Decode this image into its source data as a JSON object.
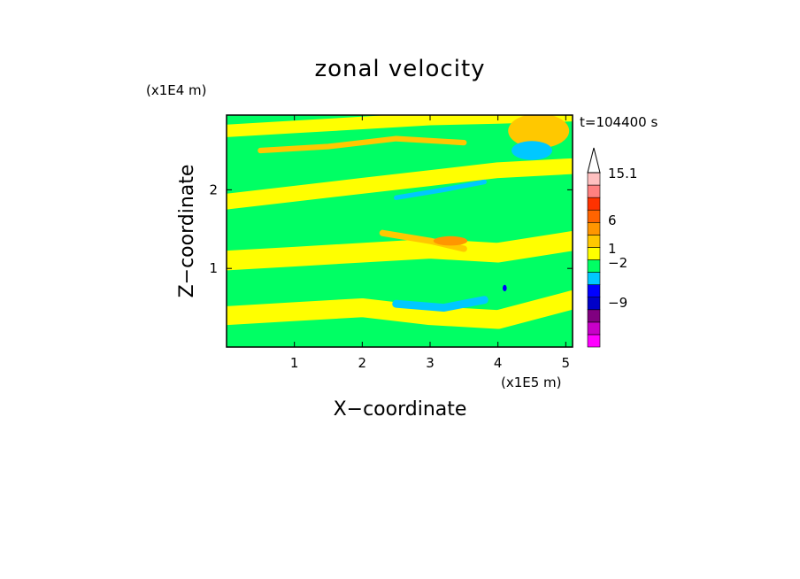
{
  "chart_data": {
    "type": "heatmap",
    "title": "zonal velocity",
    "xlabel": "X−coordinate",
    "ylabel": "Z−coordinate",
    "x_unit": "(x1E5 m)",
    "y_unit": "(x1E4 m)",
    "time_label": "t=104400 s",
    "xlim": [
      0.0,
      5.1
    ],
    "ylim": [
      0.0,
      2.95
    ],
    "x_ticks": [
      1,
      2,
      3,
      4,
      5
    ],
    "y_ticks": [
      1,
      2
    ],
    "x_tick_labels": [
      "1",
      "2",
      "3",
      "4",
      "5"
    ],
    "y_tick_labels": [
      "1",
      "2"
    ],
    "colorbar": {
      "extend": "max",
      "levels": [
        {
          "color": "#ff00ff"
        },
        {
          "color": "#c800c8"
        },
        {
          "color": "#800080"
        },
        {
          "color": "#0000c8"
        },
        {
          "color": "#0000ff"
        },
        {
          "color": "#00c8ff"
        },
        {
          "color": "#00ff64"
        },
        {
          "color": "#ffff00"
        },
        {
          "color": "#ffc800"
        },
        {
          "color": "#ff9600"
        },
        {
          "color": "#ff6400"
        },
        {
          "color": "#ff3200"
        },
        {
          "color": "#ff8080"
        },
        {
          "color": "#ffc0c0"
        }
      ],
      "tick_labels": [
        "15.1",
        "6",
        "1",
        "−2",
        "−9"
      ]
    },
    "bands": [
      {
        "color": "#00ff64",
        "points": [
          [
            0,
            0.1
          ],
          [
            0.5,
            0.15
          ],
          [
            1.5,
            0.05
          ],
          [
            3,
            0.12
          ],
          [
            4,
            0.08
          ],
          [
            5.1,
            0.2
          ]
        ],
        "thick": 0.14
      },
      {
        "color": "#ffff00",
        "points": [
          [
            0,
            0.4
          ],
          [
            1,
            0.45
          ],
          [
            2,
            0.5
          ],
          [
            3,
            0.4
          ],
          [
            4,
            0.35
          ],
          [
            5.1,
            0.6
          ]
        ],
        "thick": 0.24
      },
      {
        "color": "#00ff64",
        "points": [
          [
            0,
            0.75
          ],
          [
            1,
            0.8
          ],
          [
            2,
            0.85
          ],
          [
            3,
            0.7
          ],
          [
            4,
            0.75
          ],
          [
            5.1,
            1.0
          ]
        ],
        "thick": 0.22
      },
      {
        "color": "#00c8ff",
        "points": [
          [
            2.5,
            0.55
          ],
          [
            3.2,
            0.5
          ],
          [
            3.8,
            0.6
          ]
        ],
        "thick": 0.1
      },
      {
        "color": "#ffff00",
        "points": [
          [
            0,
            1.1
          ],
          [
            1,
            1.15
          ],
          [
            2,
            1.2
          ],
          [
            3,
            1.25
          ],
          [
            4,
            1.2
          ],
          [
            5.1,
            1.35
          ]
        ],
        "thick": 0.25
      },
      {
        "color": "#00ff64",
        "points": [
          [
            0,
            1.45
          ],
          [
            1,
            1.55
          ],
          [
            2,
            1.65
          ],
          [
            3,
            1.75
          ],
          [
            4,
            1.7
          ],
          [
            5.1,
            1.85
          ]
        ],
        "thick": 0.2
      },
      {
        "color": "#ffc800",
        "points": [
          [
            2.3,
            1.45
          ],
          [
            3,
            1.35
          ],
          [
            3.5,
            1.25
          ]
        ],
        "thick": 0.08
      },
      {
        "color": "#ffff00",
        "points": [
          [
            0,
            1.85
          ],
          [
            1,
            1.95
          ],
          [
            2,
            2.05
          ],
          [
            3,
            2.15
          ],
          [
            4,
            2.25
          ],
          [
            5.1,
            2.3
          ]
        ],
        "thick": 0.2
      },
      {
        "color": "#00c8ff",
        "points": [
          [
            2.5,
            1.9
          ],
          [
            3.2,
            2.0
          ],
          [
            3.8,
            2.1
          ]
        ],
        "thick": 0.06
      },
      {
        "color": "#00ff64",
        "points": [
          [
            0,
            2.25
          ],
          [
            1,
            2.35
          ],
          [
            2,
            2.45
          ],
          [
            3,
            2.55
          ],
          [
            4,
            2.65
          ],
          [
            5.1,
            2.7
          ]
        ],
        "thick": 0.18
      },
      {
        "color": "#ffc800",
        "points": [
          [
            0.5,
            2.5
          ],
          [
            1.5,
            2.55
          ],
          [
            2.5,
            2.65
          ],
          [
            3.5,
            2.6
          ]
        ],
        "thick": 0.07
      },
      {
        "color": "#ffff00",
        "points": [
          [
            0,
            2.75
          ],
          [
            1,
            2.8
          ],
          [
            2,
            2.85
          ],
          [
            3,
            2.9
          ],
          [
            4,
            2.92
          ],
          [
            5.1,
            2.95
          ]
        ],
        "thick": 0.16
      }
    ],
    "spots": [
      {
        "color": "#ffc800",
        "x": 4.6,
        "y": 2.75,
        "rx": 0.45,
        "ry": 0.22
      },
      {
        "color": "#0000ff",
        "x": 4.5,
        "y": 2.5,
        "rx": 0.22,
        "ry": 0.08
      },
      {
        "color": "#00c8ff",
        "x": 4.5,
        "y": 2.5,
        "rx": 0.3,
        "ry": 0.12
      },
      {
        "color": "#ff9600",
        "x": 3.3,
        "y": 1.35,
        "rx": 0.25,
        "ry": 0.06
      },
      {
        "color": "#0000ff",
        "x": 4.1,
        "y": 0.75,
        "rx": 0.03,
        "ry": 0.04
      }
    ]
  }
}
